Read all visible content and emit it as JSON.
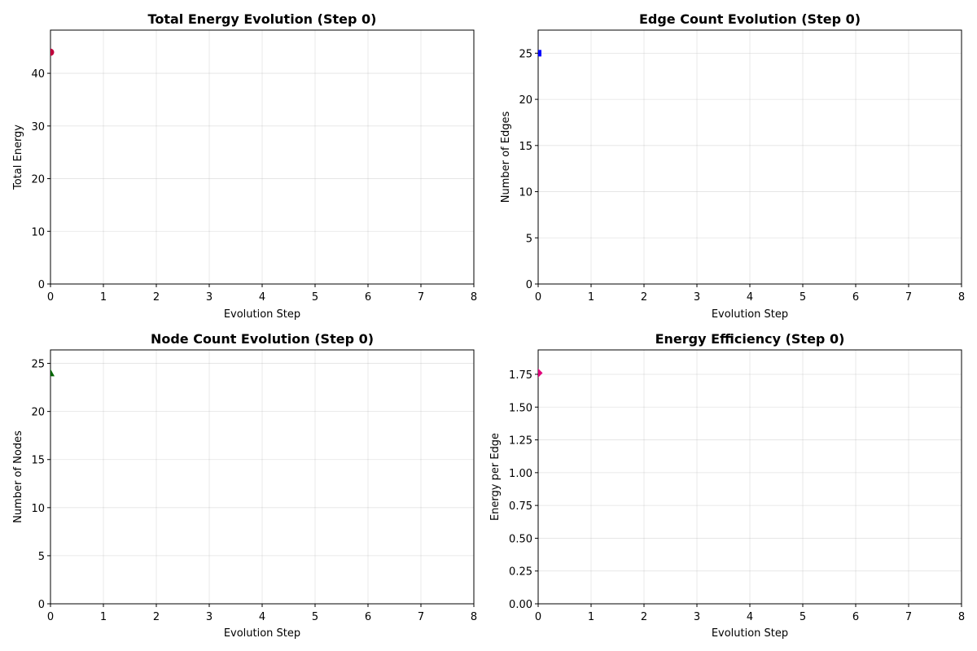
{
  "chart_data": [
    {
      "type": "line",
      "title": "Total Energy Evolution (Step 0)",
      "xlabel": "Evolution Step",
      "ylabel": "Total Energy",
      "xlim": [
        0,
        8
      ],
      "ylim": [
        0,
        48.2
      ],
      "xticks": [
        0,
        1,
        2,
        3,
        4,
        5,
        6,
        7,
        8
      ],
      "yticks": [
        0,
        10,
        20,
        30,
        40
      ],
      "ytick_decimals": 0,
      "grid": true,
      "marker": "circle",
      "color": "#c0003c",
      "series": [
        {
          "name": "Total Energy",
          "x": [
            0
          ],
          "y": [
            44
          ]
        }
      ]
    },
    {
      "type": "line",
      "title": "Edge Count Evolution (Step 0)",
      "xlabel": "Evolution Step",
      "ylabel": "Number of Edges",
      "xlim": [
        0,
        8
      ],
      "ylim": [
        0,
        27.5
      ],
      "xticks": [
        0,
        1,
        2,
        3,
        4,
        5,
        6,
        7,
        8
      ],
      "yticks": [
        0,
        5,
        10,
        15,
        20,
        25
      ],
      "ytick_decimals": 0,
      "grid": true,
      "marker": "square",
      "color": "#0000ff",
      "series": [
        {
          "name": "Number of Edges",
          "x": [
            0
          ],
          "y": [
            25
          ]
        }
      ]
    },
    {
      "type": "line",
      "title": "Node Count Evolution (Step 0)",
      "xlabel": "Evolution Step",
      "ylabel": "Number of Nodes",
      "xlim": [
        0,
        8
      ],
      "ylim": [
        0,
        26.4
      ],
      "xticks": [
        0,
        1,
        2,
        3,
        4,
        5,
        6,
        7,
        8
      ],
      "yticks": [
        0,
        5,
        10,
        15,
        20,
        25
      ],
      "ytick_decimals": 0,
      "grid": true,
      "marker": "triangle",
      "color": "#006400",
      "series": [
        {
          "name": "Number of Nodes",
          "x": [
            0
          ],
          "y": [
            24
          ]
        }
      ]
    },
    {
      "type": "line",
      "title": "Energy Efficiency (Step 0)",
      "xlabel": "Evolution Step",
      "ylabel": "Energy per Edge",
      "xlim": [
        0,
        8
      ],
      "ylim": [
        0,
        1.936
      ],
      "xticks": [
        0,
        1,
        2,
        3,
        4,
        5,
        6,
        7,
        8
      ],
      "yticks": [
        0,
        0.25,
        0.5,
        0.75,
        1.0,
        1.25,
        1.5,
        1.75
      ],
      "ytick_decimals": 2,
      "grid": true,
      "marker": "diamond",
      "color": "#e0007a",
      "series": [
        {
          "name": "Energy per Edge",
          "x": [
            0
          ],
          "y": [
            1.76
          ]
        }
      ]
    }
  ]
}
